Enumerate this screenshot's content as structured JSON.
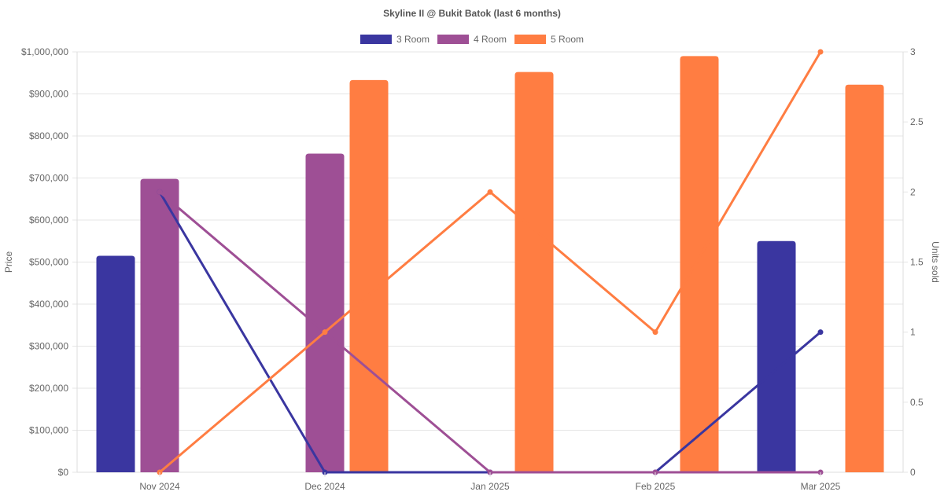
{
  "chart_data": {
    "type": "bar",
    "title": "Skyline II @ Bukit Batok (last 6 months)",
    "categories": [
      "Nov 2024",
      "Dec 2024",
      "Jan 2025",
      "Feb 2025",
      "Mar 2025"
    ],
    "y_left": {
      "label": "Price",
      "range": [
        0,
        1000000
      ],
      "ticks": [
        "$0",
        "$100,000",
        "$200,000",
        "$300,000",
        "$400,000",
        "$500,000",
        "$600,000",
        "$700,000",
        "$800,000",
        "$900,000",
        "$1,000,000"
      ]
    },
    "y_right": {
      "label": "Units sold",
      "range": [
        0,
        3
      ],
      "ticks": [
        "0",
        "0.5",
        "1",
        "1.5",
        "2",
        "2.5",
        "3"
      ]
    },
    "legend": {
      "position": "top"
    },
    "series": [
      {
        "name": "3 Room",
        "color": "#3a36a0",
        "bar_values": [
          515000,
          null,
          null,
          null,
          550000
        ],
        "units_sold": [
          2,
          0,
          0,
          0,
          1
        ]
      },
      {
        "name": "4 Room",
        "color": "#9e4f95",
        "bar_values": [
          698000,
          758000,
          null,
          null,
          null
        ],
        "units_sold": [
          2,
          1,
          0,
          0,
          0
        ]
      },
      {
        "name": "5 Room",
        "color": "#ff7d42",
        "bar_values": [
          null,
          933000,
          952000,
          990000,
          922000
        ],
        "units_sold": [
          0,
          1,
          2,
          1,
          3
        ]
      }
    ]
  }
}
